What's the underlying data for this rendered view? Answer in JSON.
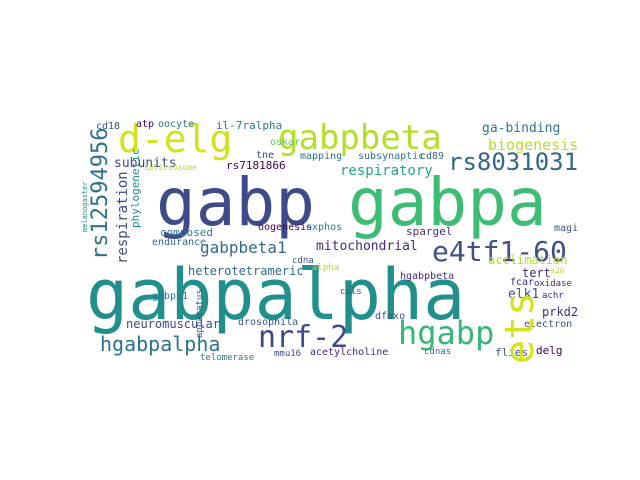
{
  "wordcloud": {
    "words": {
      "gabpalpha": "gabpalpha",
      "gabpa": "gabpa",
      "gabp": "gabp",
      "gabpbeta": "gabpbeta",
      "d_elg": "d-elg",
      "hgabp": "hgabp",
      "nrf_2": "nrf-2",
      "e4tf1_60": "e4tf1-60",
      "ets": "ets",
      "rs12594956": "rs12594956",
      "rs8031031": "rs8031031",
      "hgabpalpha": "hgabpalpha",
      "gabpbeta1": "gabpbeta1",
      "mitochondrial": "mitochondrial",
      "respiratory": "respiratory",
      "biogenesis": "biogenesis",
      "ga_binding": "ga-binding",
      "subunits": "subunits",
      "rs7181866": "rs7181866",
      "respiration": "respiration",
      "heterotetrameric": "heterotetrameric",
      "neuromuscular": "neuromuscular",
      "acclimation": "acclimation",
      "tert": "tert",
      "elk1": "elk1",
      "composed": "composed",
      "endurance": "endurance",
      "oogenesis": "oogenesis",
      "spargel": "spargel",
      "dfoxo": "dfoxo",
      "hgabpbeta": "hgabpbeta",
      "drosophila": "drosophila",
      "acetylcholine": "acetylcholine",
      "mmu16": "mmu16",
      "telomerase": "telomerase",
      "cdnas": "cdnas",
      "flies": "flies",
      "delg": "delg",
      "prkd2": "prkd2",
      "fcar": "fcar",
      "oxidase": "oxidase",
      "electron": "electron",
      "oxphos": "oxphos",
      "cd89": "cd89",
      "mapping": "mapping",
      "subsynaptic": "subsynaptic",
      "il_7ralpha": "il-7ralpha",
      "oocyte": "oocyte",
      "atp": "atp",
      "cd18": "cd18",
      "oskar": "oskar",
      "tne": "tne",
      "gabpb1": "gabpb1",
      "phylogenetic": "phylogenetic",
      "apparatus": "apparatus",
      "cdna": "cdna",
      "alpha": "alpha",
      "culs": "culs",
      "magi": "magi",
      "achr": "achr",
      "spliceosome": "spliceosome",
      "melanogaster": "melanogaster",
      "a26": "a26"
    }
  }
}
